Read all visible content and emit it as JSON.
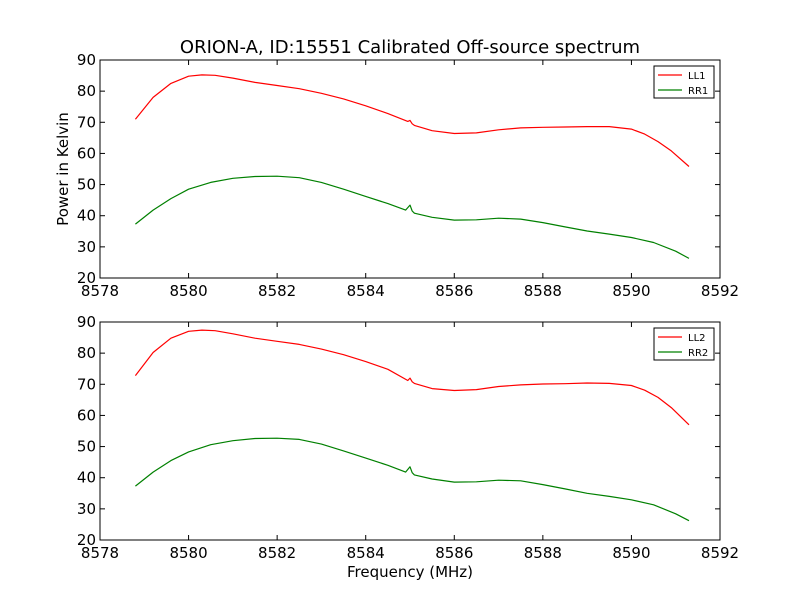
{
  "figure": {
    "title": "ORION-A, ID:15551 Calibrated Off-source spectrum",
    "xlabel": "Frequency (MHz)",
    "ylabel": "Power in Kelvin"
  },
  "chart_data": [
    {
      "type": "line",
      "xlim": [
        8578,
        8592
      ],
      "ylim": [
        20,
        90
      ],
      "xticks": [
        8578,
        8580,
        8582,
        8584,
        8586,
        8588,
        8590,
        8592
      ],
      "yticks": [
        20,
        30,
        40,
        50,
        60,
        70,
        80,
        90
      ],
      "xlabel": "",
      "ylabel": "Power in Kelvin",
      "grid": false,
      "legend_position": "top-right",
      "series": [
        {
          "name": "LL1",
          "color": "#ff0000",
          "x": [
            8578.8,
            8579.2,
            8579.6,
            8580.0,
            8580.3,
            8580.6,
            8581.0,
            8581.5,
            8582.0,
            8582.5,
            8583.0,
            8583.5,
            8584.0,
            8584.5,
            8584.95,
            8585.0,
            8585.05,
            8585.1,
            8585.5,
            8586.0,
            8586.5,
            8587.0,
            8587.5,
            8588.0,
            8588.5,
            8589.0,
            8589.5,
            8590.0,
            8590.3,
            8590.6,
            8590.9,
            8591.3
          ],
          "y": [
            71,
            78,
            82.5,
            84.8,
            85.2,
            85.1,
            84.2,
            82.8,
            81.8,
            80.8,
            79.3,
            77.5,
            75.3,
            72.8,
            70.3,
            70.6,
            69.5,
            69,
            67.3,
            66.4,
            66.6,
            67.6,
            68.2,
            68.4,
            68.5,
            68.6,
            68.6,
            67.8,
            66.2,
            63.8,
            60.8,
            55.8
          ]
        },
        {
          "name": "RR1",
          "color": "#008000",
          "x": [
            8578.8,
            8579.2,
            8579.6,
            8580.0,
            8580.5,
            8581.0,
            8581.5,
            8582.0,
            8582.5,
            8583.0,
            8583.5,
            8584.0,
            8584.5,
            8584.9,
            8585.0,
            8585.05,
            8585.1,
            8585.5,
            8586.0,
            8586.5,
            8587.0,
            8587.5,
            8588.0,
            8588.5,
            8589.0,
            8589.5,
            8590.0,
            8590.5,
            8591.0,
            8591.3
          ],
          "y": [
            37.3,
            41.8,
            45.5,
            48.5,
            50.7,
            52,
            52.6,
            52.7,
            52.2,
            50.7,
            48.5,
            46.2,
            43.9,
            41.8,
            43.4,
            41.5,
            40.8,
            39.5,
            38.6,
            38.7,
            39.2,
            38.9,
            37.8,
            36.4,
            35.1,
            34.1,
            33,
            31.4,
            28.6,
            26.3
          ]
        }
      ]
    },
    {
      "type": "line",
      "xlim": [
        8578,
        8592
      ],
      "ylim": [
        20,
        90
      ],
      "xticks": [
        8578,
        8580,
        8582,
        8584,
        8586,
        8588,
        8590,
        8592
      ],
      "yticks": [
        20,
        30,
        40,
        50,
        60,
        70,
        80,
        90
      ],
      "xlabel": "Frequency (MHz)",
      "ylabel": "",
      "grid": false,
      "legend_position": "top-right",
      "series": [
        {
          "name": "LL2",
          "color": "#ff0000",
          "x": [
            8578.8,
            8579.2,
            8579.6,
            8580.0,
            8580.3,
            8580.6,
            8581.0,
            8581.5,
            8582.0,
            8582.5,
            8583.0,
            8583.5,
            8584.0,
            8584.5,
            8584.95,
            8585.0,
            8585.05,
            8585.1,
            8585.5,
            8586.0,
            8586.5,
            8587.0,
            8587.5,
            8588.0,
            8588.5,
            8589.0,
            8589.5,
            8590.0,
            8590.3,
            8590.6,
            8590.9,
            8591.3
          ],
          "y": [
            72.8,
            80.2,
            84.8,
            87,
            87.4,
            87.2,
            86.2,
            84.8,
            83.8,
            82.8,
            81.3,
            79.5,
            77.3,
            74.8,
            71.2,
            72,
            70.8,
            70.3,
            68.6,
            68,
            68.3,
            69.3,
            69.8,
            70.1,
            70.2,
            70.4,
            70.3,
            69.6,
            68.1,
            65.8,
            62.5,
            57
          ]
        },
        {
          "name": "RR2",
          "color": "#008000",
          "x": [
            8578.8,
            8579.2,
            8579.6,
            8580.0,
            8580.5,
            8581.0,
            8581.5,
            8582.0,
            8582.5,
            8583.0,
            8583.5,
            8584.0,
            8584.5,
            8584.9,
            8585.0,
            8585.05,
            8585.1,
            8585.5,
            8586.0,
            8586.5,
            8587.0,
            8587.5,
            8588.0,
            8588.5,
            8589.0,
            8589.5,
            8590.0,
            8590.5,
            8591.0,
            8591.3
          ],
          "y": [
            37.3,
            41.8,
            45.5,
            48.3,
            50.6,
            51.9,
            52.6,
            52.7,
            52.3,
            50.8,
            48.6,
            46.3,
            44,
            41.8,
            43.5,
            41.6,
            40.9,
            39.6,
            38.6,
            38.7,
            39.2,
            39,
            37.8,
            36.4,
            35,
            34,
            32.9,
            31.3,
            28.4,
            26.2
          ]
        }
      ]
    }
  ]
}
